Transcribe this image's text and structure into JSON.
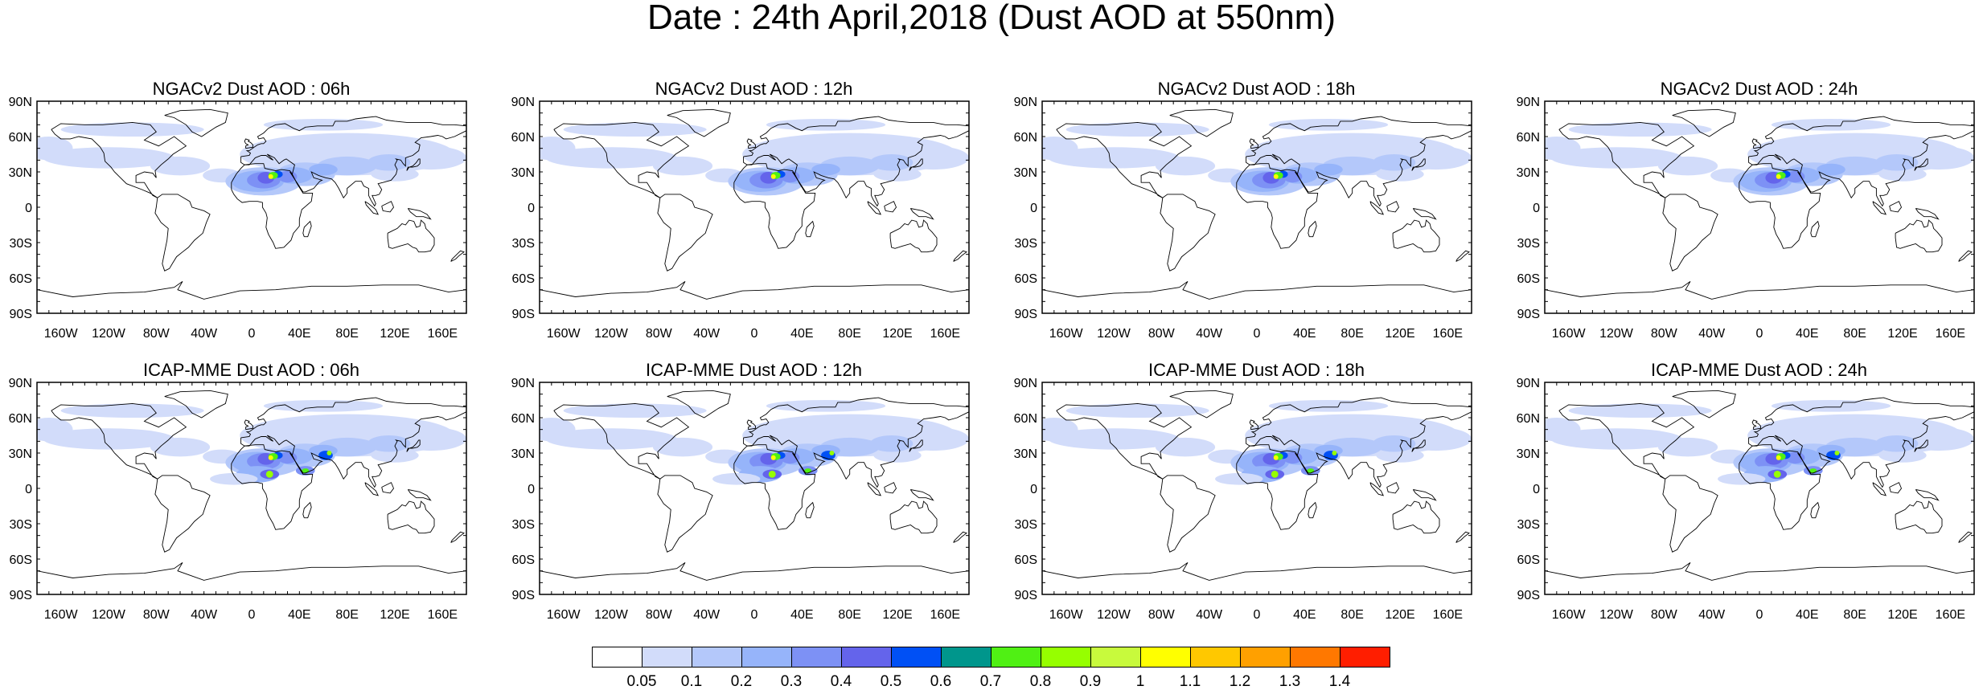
{
  "title": "Date : 24th April,2018 (Dust AOD at 550nm)",
  "lat_ticks": [
    "90N",
    "60N",
    "30N",
    "0",
    "30S",
    "60S",
    "90S"
  ],
  "lon_ticks": [
    "160W",
    "120W",
    "80W",
    "40W",
    "0",
    "40E",
    "80E",
    "120E",
    "160E"
  ],
  "panels": [
    {
      "title": "NGACv2 Dust AOD : 06h",
      "model": "NGACv2",
      "hour": "06h"
    },
    {
      "title": "NGACv2 Dust AOD : 12h",
      "model": "NGACv2",
      "hour": "12h"
    },
    {
      "title": "NGACv2 Dust AOD : 18h",
      "model": "NGACv2",
      "hour": "18h"
    },
    {
      "title": "NGACv2 Dust AOD : 24h",
      "model": "NGACv2",
      "hour": "24h"
    },
    {
      "title": "ICAP-MME Dust AOD : 06h",
      "model": "ICAP-MME",
      "hour": "06h"
    },
    {
      "title": "ICAP-MME Dust AOD : 12h",
      "model": "ICAP-MME",
      "hour": "12h"
    },
    {
      "title": "ICAP-MME Dust AOD : 18h",
      "model": "ICAP-MME",
      "hour": "18h"
    },
    {
      "title": "ICAP-MME Dust AOD : 24h",
      "model": "ICAP-MME",
      "hour": "24h"
    }
  ],
  "colorbar": {
    "labels": [
      "0.05",
      "0.1",
      "0.2",
      "0.3",
      "0.4",
      "0.5",
      "0.6",
      "0.7",
      "0.8",
      "0.9",
      "1",
      "1.1",
      "1.2",
      "1.3",
      "1.4"
    ],
    "colors": [
      "#ffffff",
      "#d2dcfa",
      "#b4c8fa",
      "#96b4fa",
      "#7d91f5",
      "#6464eb",
      "#0050f5",
      "#00968c",
      "#50f014",
      "#96ff00",
      "#c8fa3c",
      "#ffff00",
      "#ffc800",
      "#ffa000",
      "#ff7800",
      "#ff1e00"
    ]
  }
}
